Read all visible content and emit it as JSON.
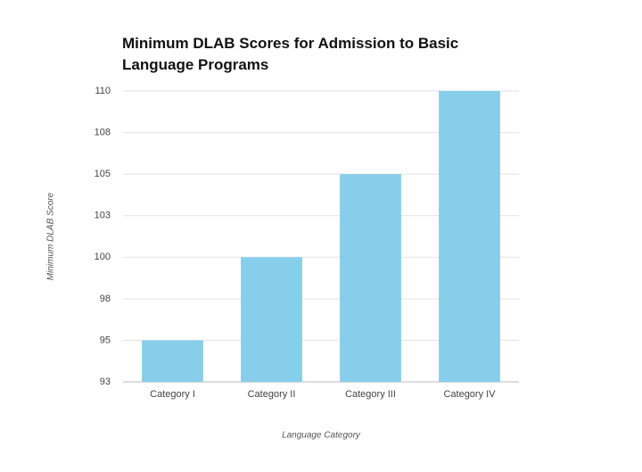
{
  "chart_data": {
    "type": "bar",
    "title": "Minimum DLAB Scores for Admission to Basic Language Programs",
    "x_label": "Language Category",
    "y_label": "Minimum DLAB Score",
    "categories": [
      "Category I",
      "Category II",
      "Category III",
      "Category IV"
    ],
    "values": [
      95,
      100,
      105,
      110
    ],
    "color": "#87ceeb",
    "ylim": [
      92.5,
      110
    ],
    "yticks": [
      {
        "value": 92.5,
        "label": "93"
      },
      95,
      {
        "value": 97.5,
        "label": "98"
      },
      100,
      {
        "value": 102.5,
        "label": "103"
      },
      105,
      {
        "value": 107.5,
        "label": "108"
      },
      110
    ],
    "grid": true
  }
}
